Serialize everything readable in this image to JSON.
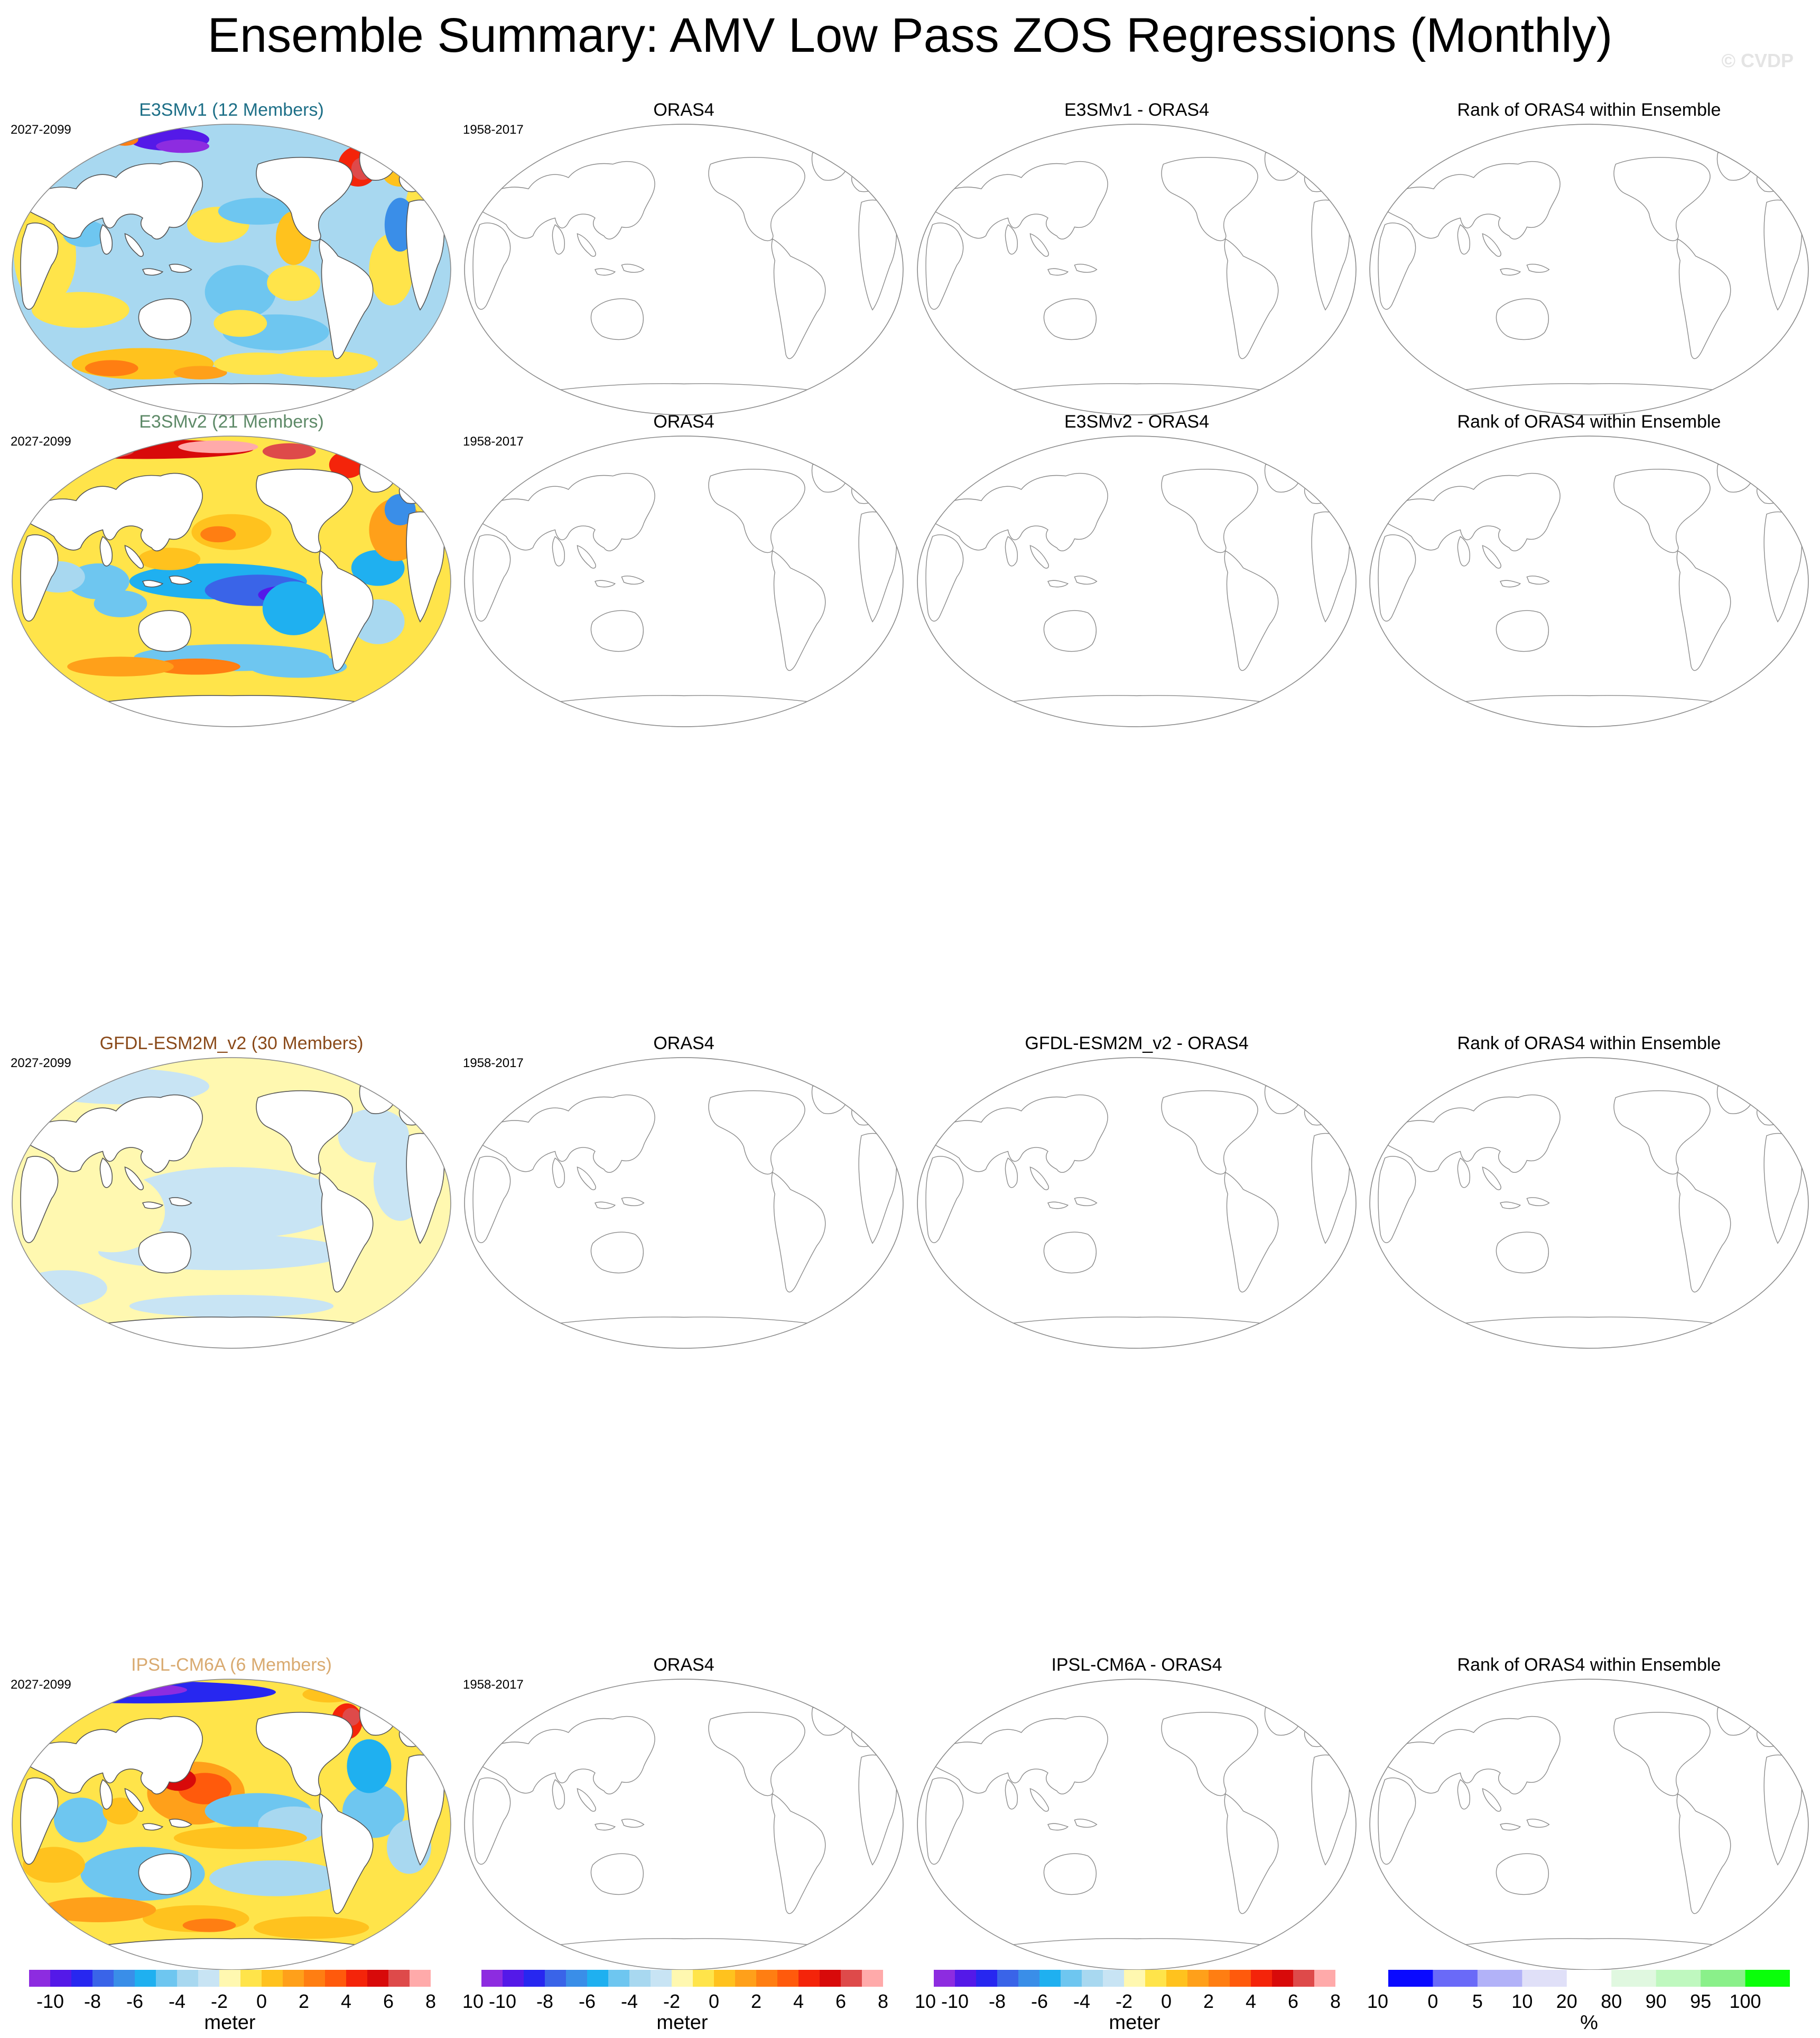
{
  "title": "Ensemble Summary: AMV Low Pass ZOS Regressions (Monthly)",
  "watermark": "© CVDP",
  "rows": [
    {
      "model_title": "E3SMv1 (12 Members)",
      "model_title_color": "#1d6f87",
      "model_period": "2027-2099",
      "obs_title": "ORAS4",
      "obs_period": "1958-2017",
      "diff_title": "E3SMv1 - ORAS4",
      "rank_title": "Rank of ORAS4 within Ensemble",
      "pattern": "e3smv1"
    },
    {
      "model_title": "E3SMv2 (21 Members)",
      "model_title_color": "#5e8a68",
      "model_period": "2027-2099",
      "obs_title": "ORAS4",
      "obs_period": "1958-2017",
      "diff_title": "E3SMv2 - ORAS4",
      "rank_title": "Rank of ORAS4 within Ensemble",
      "pattern": "e3smv2"
    },
    {
      "model_title": "GFDL-ESM2M_v2 (30 Members)",
      "model_title_color": "#8a4a1a",
      "model_period": "2027-2099",
      "obs_title": "ORAS4",
      "obs_period": "1958-2017",
      "diff_title": "GFDL-ESM2M_v2 - ORAS4",
      "rank_title": "Rank of ORAS4 within Ensemble",
      "pattern": "gfdl"
    },
    {
      "model_title": "IPSL-CM6A (6 Members)",
      "model_title_color": "#d9aa70",
      "model_period": "2027-2099",
      "obs_title": "ORAS4",
      "obs_period": "1958-2017",
      "diff_title": "IPSL-CM6A - ORAS4",
      "rank_title": "Rank of ORAS4 within Ensemble",
      "pattern": "ipsl"
    }
  ],
  "colorbars": {
    "meter": {
      "unit": "meter",
      "labels": [
        "-10",
        "-8",
        "-6",
        "-4",
        "-2",
        "0",
        "2",
        "4",
        "6",
        "8",
        "10"
      ],
      "colors": [
        "#8d2ce0",
        "#5419e8",
        "#2727f0",
        "#3a64e8",
        "#3a8ee8",
        "#1fb0f0",
        "#6ec6f0",
        "#a8d8f0",
        "#c8e4f4",
        "#fff8b0",
        "#ffe44a",
        "#ffc21e",
        "#ffa01a",
        "#ff7e12",
        "#ff5a0c",
        "#f4240a",
        "#d80a0a",
        "#de4a4a",
        "#ffaaaa"
      ]
    },
    "rank": {
      "unit": "%",
      "labels": [
        "0",
        "5",
        "10",
        "20",
        "80",
        "90",
        "95",
        "100"
      ],
      "colors": [
        "#0a0aff",
        "#6a6af8",
        "#b2b2f8",
        "#e0e0f8",
        "#ffffff",
        "#e0f8e0",
        "#bff8bf",
        "#8af08a",
        "#0aff0a"
      ]
    }
  }
}
